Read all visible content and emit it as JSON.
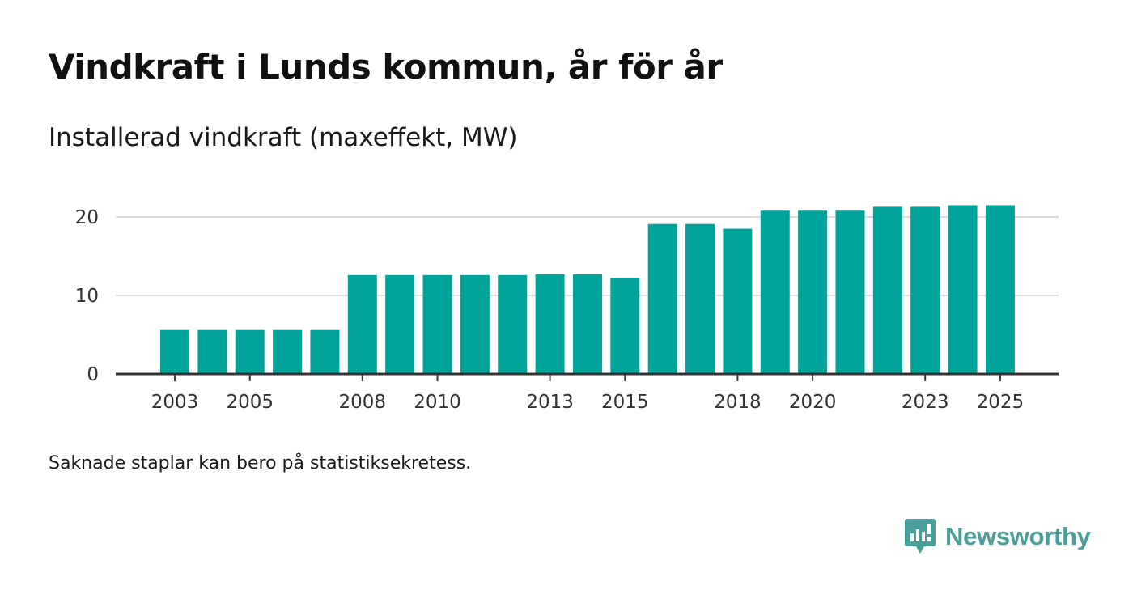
{
  "title": "Vindkraft i Lunds kommun, år för år",
  "subtitle": "Installerad vindkraft (maxeffekt, MW)",
  "note": "Saknade staplar kan bero på statistiksekretess.",
  "logo": {
    "name": "Newsworthy",
    "color": "#4a9f9a"
  },
  "colors": {
    "bar": "#00a39a",
    "grid": "#dddddd",
    "axis": "#333333"
  },
  "chart_data": {
    "type": "bar",
    "title": "Vindkraft i Lunds kommun, år för år",
    "ylabel": "Installerad vindkraft (maxeffekt, MW)",
    "xlabel": "",
    "ylim": [
      0,
      20
    ],
    "yticks": [
      0,
      10,
      20
    ],
    "categories": [
      2003,
      2004,
      2005,
      2006,
      2007,
      2008,
      2009,
      2010,
      2011,
      2012,
      2013,
      2014,
      2015,
      2016,
      2017,
      2018,
      2019,
      2020,
      2021,
      2022,
      2023,
      2024,
      2025
    ],
    "values": [
      5.6,
      5.6,
      5.6,
      5.6,
      5.6,
      12.6,
      12.6,
      12.6,
      12.6,
      12.6,
      12.7,
      12.7,
      12.2,
      19.1,
      19.1,
      18.5,
      20.8,
      20.8,
      20.8,
      21.3,
      21.3,
      21.5,
      21.5
    ],
    "xtick_labels": [
      2003,
      2005,
      2008,
      2010,
      2013,
      2015,
      2018,
      2020,
      2023,
      2025
    ],
    "grid": true
  }
}
